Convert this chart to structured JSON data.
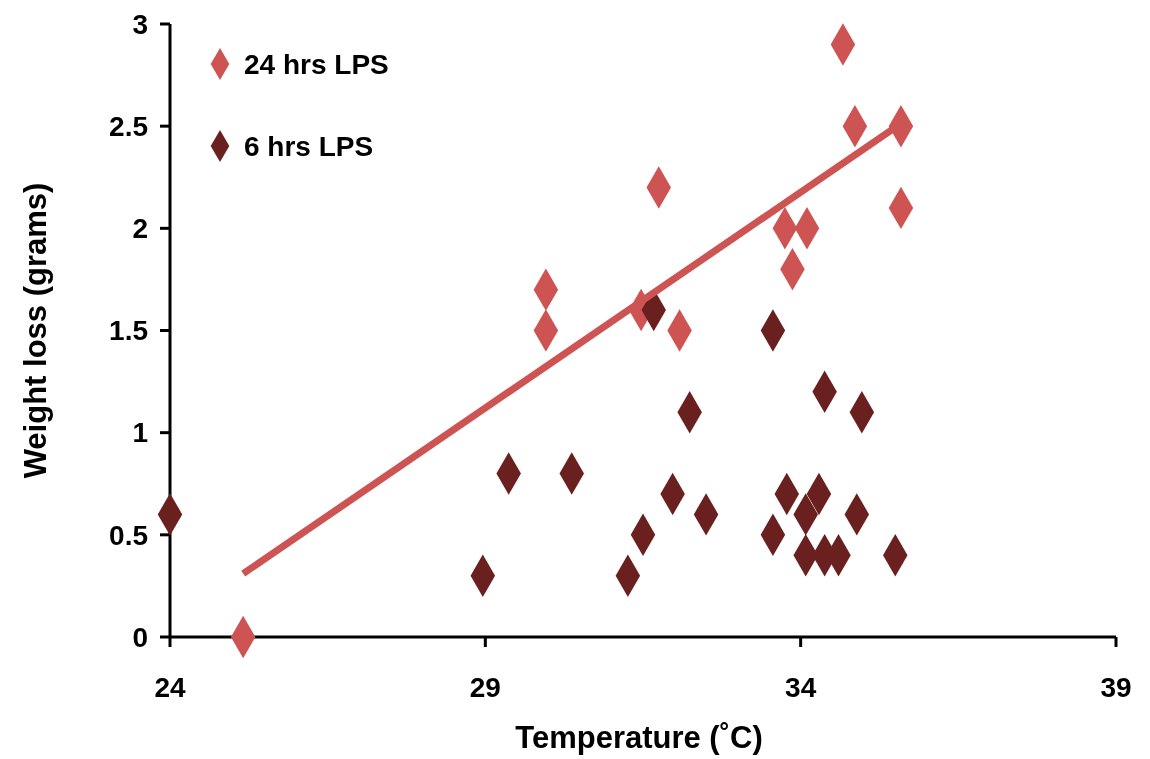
{
  "chart_data": {
    "type": "scatter",
    "xlabel": "Temperature (˚C)",
    "ylabel": "Weight loss (grams)",
    "xlim": [
      24,
      39
    ],
    "xticks": [
      24,
      29,
      34,
      39
    ],
    "ylim": [
      0,
      3
    ],
    "yticks": [
      0,
      0.5,
      1,
      1.5,
      2,
      2.5,
      3
    ],
    "grid": false,
    "legend": "top left",
    "marker": "diamond",
    "series": [
      {
        "name": "24 hrs LPS",
        "color": "#cd5452",
        "x": [
          25.16,
          29.96,
          29.96,
          31.47,
          31.75,
          32.08,
          33.75,
          34.1,
          33.87,
          34.67,
          34.86,
          35.59,
          35.59
        ],
        "values": [
          0,
          1.7,
          1.5,
          1.6,
          2.2,
          1.5,
          2.0,
          2.0,
          1.8,
          2.9,
          2.5,
          2.5,
          2.1
        ]
      },
      {
        "name": "6 hrs LPS",
        "color": "#6b2020",
        "x": [
          24.0,
          28.96,
          29.37,
          30.37,
          31.26,
          31.5,
          31.67,
          31.97,
          32.24,
          32.5,
          33.56,
          33.56,
          33.78,
          34.08,
          34.08,
          34.29,
          34.38,
          34.38,
          34.6,
          34.89,
          34.97,
          35.5
        ],
        "values": [
          0.6,
          0.3,
          0.8,
          0.8,
          0.3,
          0.5,
          1.6,
          0.7,
          1.1,
          0.6,
          1.5,
          0.5,
          0.7,
          0.6,
          0.4,
          0.7,
          1.2,
          0.4,
          0.4,
          0.6,
          1.1,
          0.4
        ]
      },
      {
        "type": "line",
        "color": "#cd5452",
        "marker": "none",
        "x": [
          25.16,
          35.53
        ],
        "values": [
          0.31,
          2.5
        ]
      }
    ]
  }
}
